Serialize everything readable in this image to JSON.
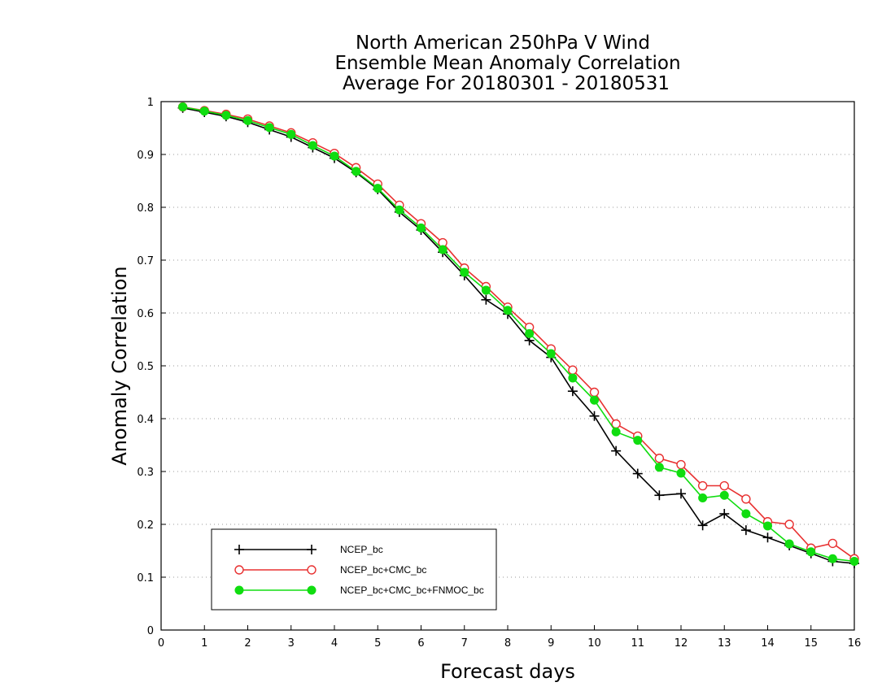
{
  "chart_data": {
    "type": "line",
    "title": [
      "North American 250hPa V Wind",
      "Ensemble Mean Anomaly Correlation",
      "Average For 20180301 - 20180531"
    ],
    "xlabel": "Forecast days",
    "ylabel": "Anomaly Correlation",
    "xlim": [
      0,
      16
    ],
    "ylim": [
      0,
      1
    ],
    "x_ticks": [
      "0",
      "1",
      "2",
      "3",
      "4",
      "5",
      "6",
      "7",
      "8",
      "9",
      "10",
      "11",
      "12",
      "13",
      "14",
      "15",
      "16"
    ],
    "y_ticks": [
      "0",
      "0.1",
      "0.2",
      "0.3",
      "0.4",
      "0.5",
      "0.6",
      "0.7",
      "0.8",
      "0.9",
      "1"
    ],
    "grid": "horizontal dotted",
    "legend_position": "bottom-left",
    "x": [
      0.5,
      1,
      1.5,
      2,
      2.5,
      3,
      3.5,
      4,
      4.5,
      5,
      5.5,
      6,
      6.5,
      7,
      7.5,
      8,
      8.5,
      9,
      9.5,
      10,
      10.5,
      11,
      11.5,
      12,
      12.5,
      13,
      13.5,
      14,
      14.5,
      15,
      15.5,
      16
    ],
    "series": [
      {
        "name": "NCEP_bc",
        "color": "#000000",
        "marker": "plus",
        "values": [
          0.988,
          0.98,
          0.972,
          0.961,
          0.947,
          0.933,
          0.913,
          0.893,
          0.866,
          0.834,
          0.791,
          0.757,
          0.715,
          0.671,
          0.625,
          0.598,
          0.548,
          0.516,
          0.452,
          0.405,
          0.339,
          0.296,
          0.255,
          0.258,
          0.198,
          0.22,
          0.189,
          0.175,
          0.16,
          0.145,
          0.13,
          0.126
        ]
      },
      {
        "name": "NCEP_bc+CMC_bc",
        "color": "#e83030",
        "marker": "open-circle",
        "values": [
          0.99,
          0.983,
          0.976,
          0.967,
          0.954,
          0.941,
          0.922,
          0.902,
          0.875,
          0.844,
          0.804,
          0.769,
          0.733,
          0.685,
          0.65,
          0.611,
          0.573,
          0.532,
          0.492,
          0.45,
          0.39,
          0.367,
          0.325,
          0.313,
          0.273,
          0.273,
          0.248,
          0.205,
          0.2,
          0.155,
          0.164,
          0.135
        ]
      },
      {
        "name": "NCEP_bc+CMC_bc+FNMOC_bc",
        "color": "#10dd10",
        "marker": "filled-circle",
        "values": [
          0.99,
          0.982,
          0.974,
          0.964,
          0.951,
          0.938,
          0.917,
          0.897,
          0.868,
          0.836,
          0.795,
          0.761,
          0.72,
          0.677,
          0.643,
          0.605,
          0.561,
          0.523,
          0.477,
          0.435,
          0.375,
          0.359,
          0.308,
          0.297,
          0.25,
          0.255,
          0.22,
          0.197,
          0.163,
          0.148,
          0.135,
          0.13
        ]
      }
    ]
  }
}
